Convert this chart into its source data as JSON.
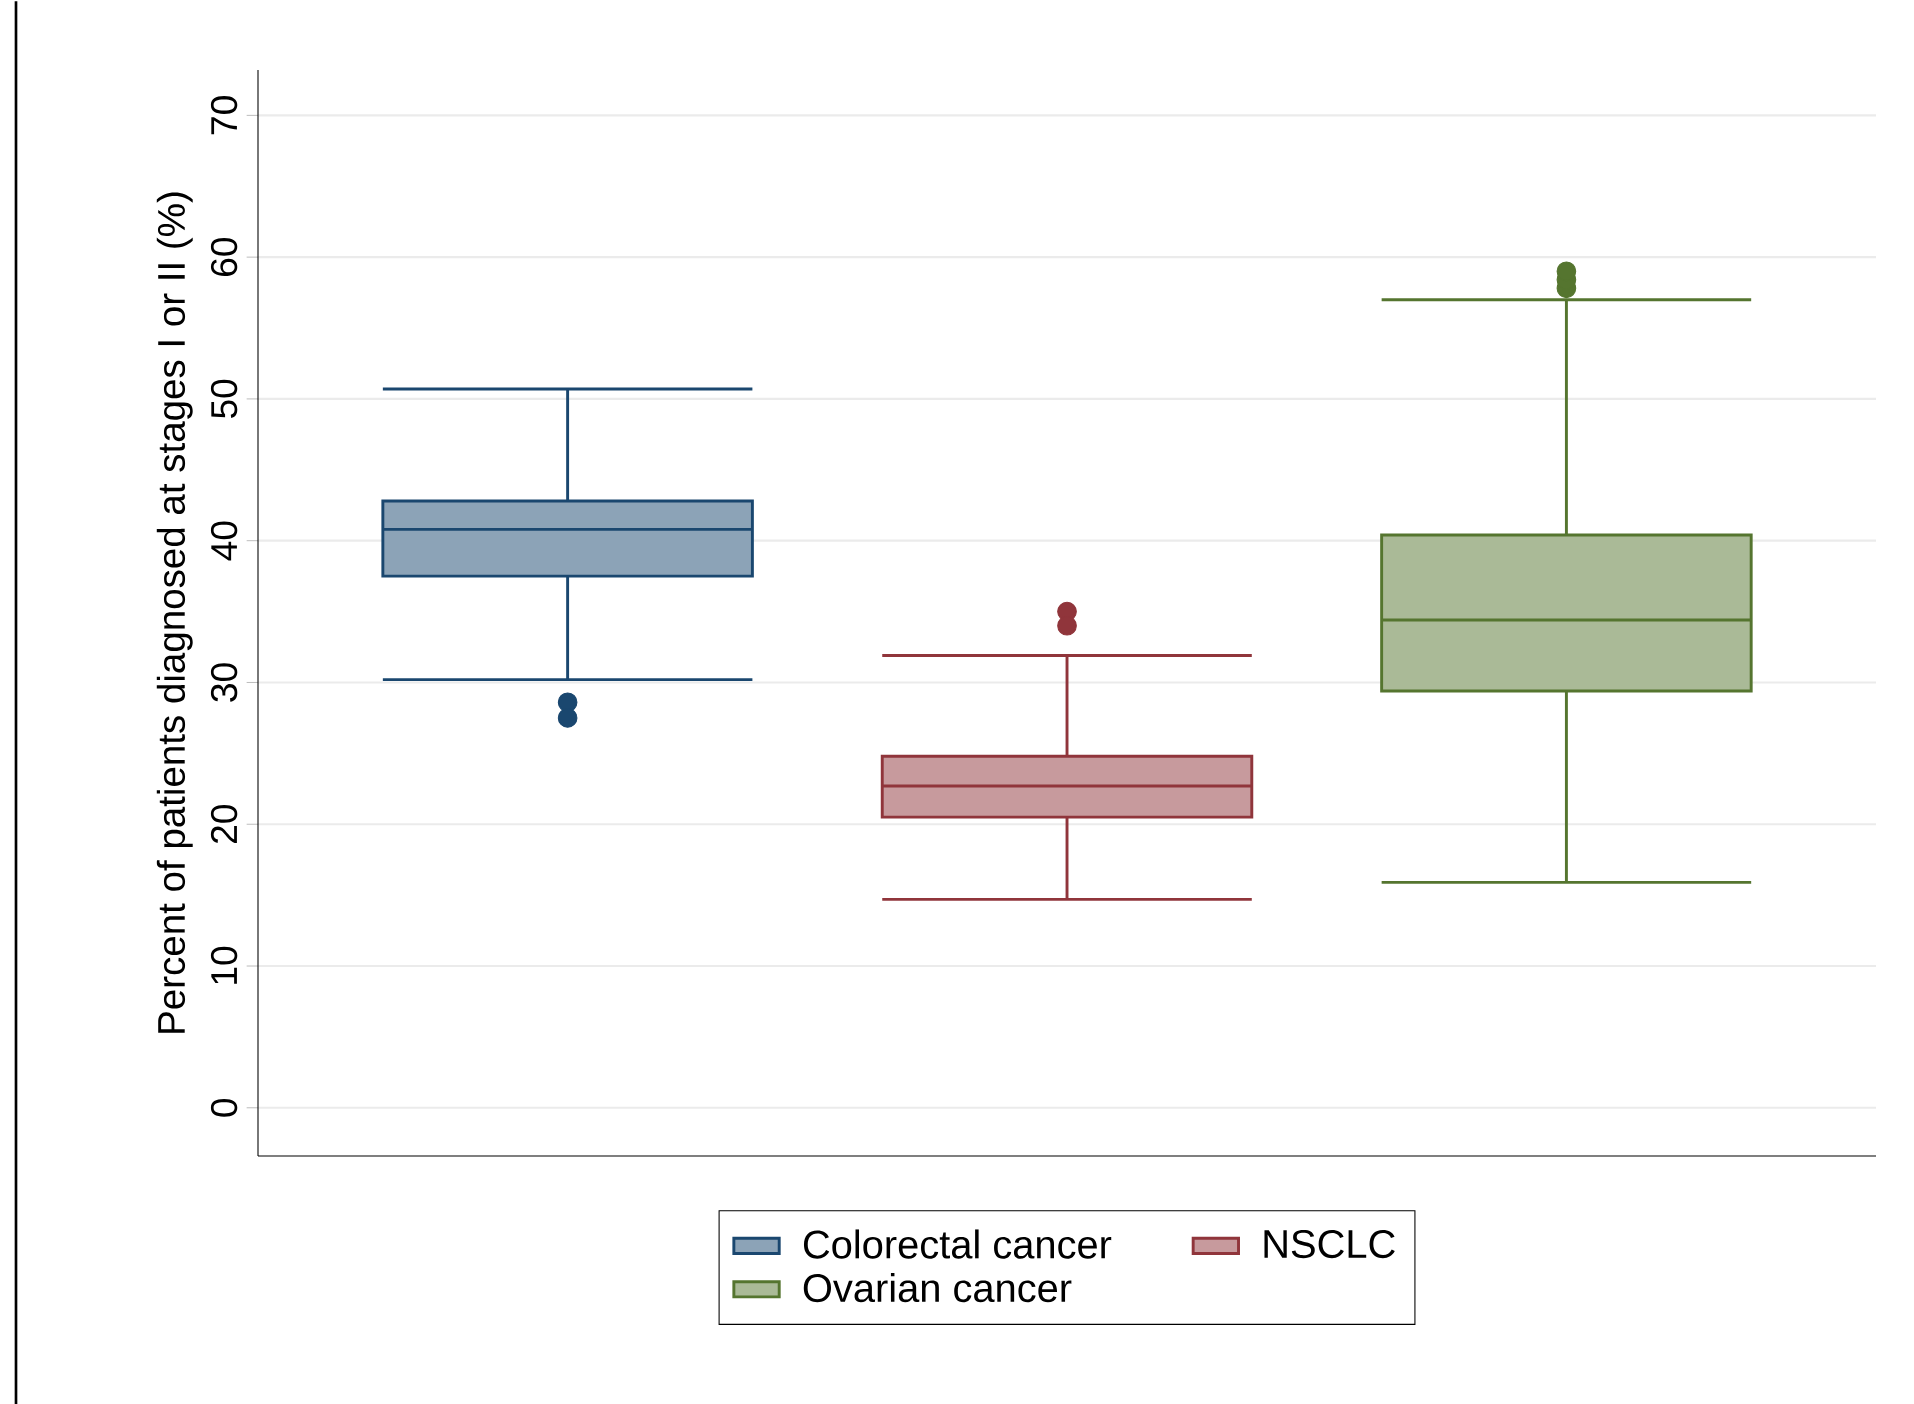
{
  "chart_data": {
    "type": "box",
    "ylabel": "Percent of patients diagnosed at stages I or II (%)",
    "categories": [
      null
    ],
    "ylim": [
      -3.4,
      73.2
    ],
    "yticks": [
      0,
      10,
      20,
      30,
      40,
      50,
      60,
      70
    ],
    "grid": "y",
    "legend": "bottom",
    "series": [
      {
        "name": "Colorectal cancer",
        "color": "#1a476f",
        "boxes": [
          {
            "low": 30.2,
            "q1": 37.5,
            "median": 40.8,
            "q3": 42.8,
            "high": 50.7,
            "outliers": [
              28.6,
              27.5
            ]
          }
        ]
      },
      {
        "name": "NSCLC",
        "color": "#90353b",
        "boxes": [
          {
            "low": 14.7,
            "q1": 20.5,
            "median": 22.7,
            "q3": 24.8,
            "high": 31.9,
            "outliers": [
              35.0,
              34.0
            ]
          }
        ]
      },
      {
        "name": "Ovarian cancer",
        "color": "#55752f",
        "boxes": [
          {
            "low": 15.9,
            "q1": 29.4,
            "median": 34.4,
            "q3": 40.4,
            "high": 57.0,
            "outliers": [
              57.8,
              58.4,
              59.0
            ]
          }
        ]
      }
    ]
  }
}
